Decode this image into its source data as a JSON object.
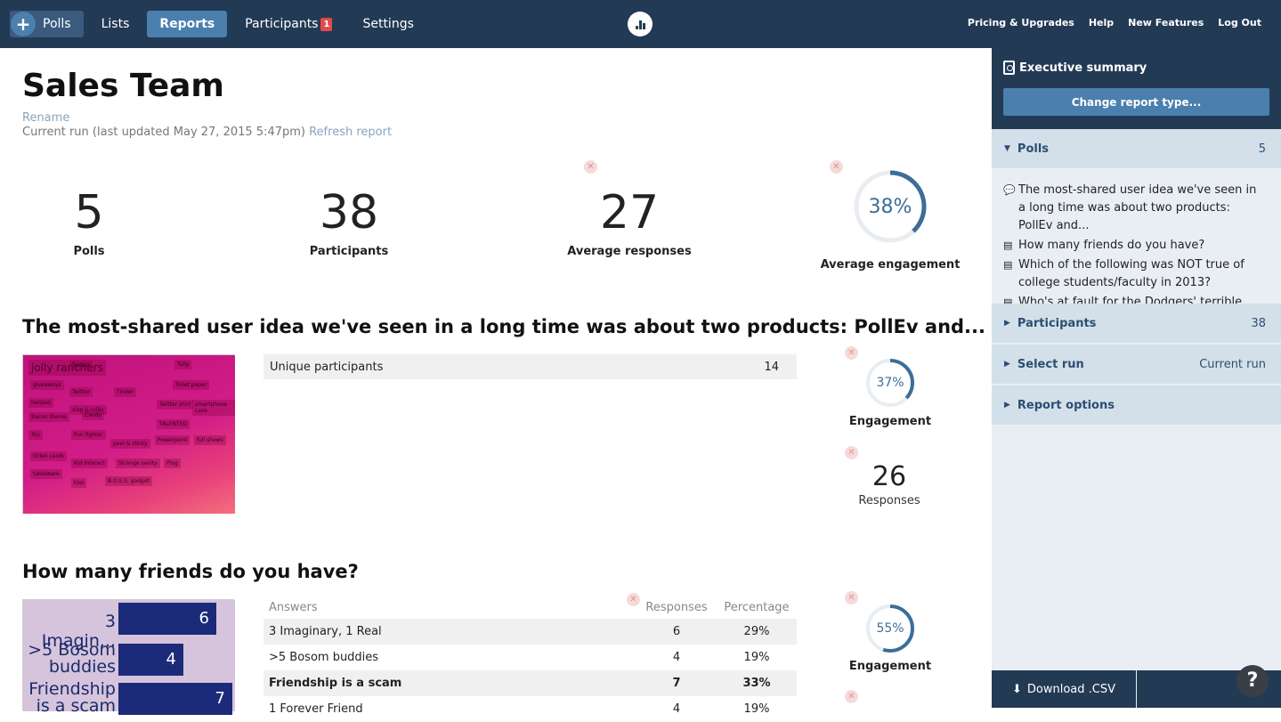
{
  "nav": {
    "polls": "Polls",
    "lists": "Lists",
    "reports": "Reports",
    "participants": "Participants",
    "participants_badge": "1",
    "settings": "Settings",
    "right": [
      "Pricing & Upgrades",
      "Help",
      "New Features",
      "Log Out"
    ]
  },
  "page": {
    "title": "Sales Team",
    "rename": "Rename",
    "run_text": "Current run (last updated May 27, 2015 5:47pm)",
    "refresh": "Refresh report"
  },
  "stats": [
    {
      "value": "5",
      "label": "Polls"
    },
    {
      "value": "38",
      "label": "Participants"
    },
    {
      "value": "27",
      "label": "Average responses"
    },
    {
      "value": "38%",
      "label": "Average engagement",
      "fraction": 0.38
    }
  ],
  "poll1": {
    "title": "The most-shared user idea we've seen in a long time was about two products: PollEv and...",
    "wordcloud_words": [
      "jolly ranchers",
      "Twitter",
      "Tully",
      "giveaways",
      "Twitter",
      "Tinder",
      "Toilet paper",
      "twisted",
      "slap & roller",
      "Twitter shirt",
      "smartphone case",
      "Bacon theme",
      "Candy",
      "TALENTED",
      "Toy",
      "Fun fighter",
      "peel & sticky",
      "Powerpoint",
      "full shows",
      "ticket cards",
      "Kid Interact",
      "Strange sanity",
      "Plog",
      "tableware",
      "kiss",
      "B.O.S.S. gadget"
    ],
    "unique_label": "Unique participants",
    "unique_value": "14",
    "engagement": "37%",
    "engagement_fraction": 0.37,
    "engagement_label": "Engagement",
    "responses": "26",
    "responses_label": "Responses"
  },
  "poll2": {
    "title": "How many friends do you have?",
    "thumb_bars": [
      {
        "label": "3 Imagin...",
        "value": "6"
      },
      {
        "label": ">5 Bosom buddies",
        "value": "4"
      },
      {
        "label": "Friendship is a scam",
        "value": "7"
      }
    ],
    "table_headers": [
      "Answers",
      "Responses",
      "Percentage"
    ],
    "rows": [
      {
        "answer": "3 Imaginary, 1 Real",
        "responses": "6",
        "percentage": "29%"
      },
      {
        "answer": ">5 Bosom buddies",
        "responses": "4",
        "percentage": "19%"
      },
      {
        "answer": "Friendship is a scam",
        "responses": "7",
        "percentage": "33%"
      },
      {
        "answer": "1 Forever Friend",
        "responses": "4",
        "percentage": "19%"
      }
    ],
    "engagement": "55%",
    "engagement_fraction": 0.55,
    "engagement_label": "Engagement"
  },
  "sidebar": {
    "exec_title": "Executive summary",
    "change_btn": "Change report type...",
    "polls_label": "Polls",
    "polls_count": "5",
    "poll_items": [
      {
        "icon": "comment-icon",
        "text": "The most-shared user idea we've seen in a long time was about two products: PollEv and..."
      },
      {
        "icon": "list-icon",
        "text": "How many friends do you have?"
      },
      {
        "icon": "list-icon",
        "text": "Which of the following was NOT true of college students/faculty in 2013?"
      },
      {
        "icon": "list-icon",
        "text": "Who's at fault for the Dodgers' terrible"
      }
    ],
    "participants_label": "Participants",
    "participants_count": "38",
    "select_run_label": "Select run",
    "select_run_value": "Current run",
    "report_options_label": "Report options",
    "download": "Download .CSV",
    "help": "?"
  },
  "colors": {
    "navy": "#233a55",
    "accent": "#4a7fae",
    "ring": "#3d6d99",
    "badge": "#e04a4a"
  }
}
